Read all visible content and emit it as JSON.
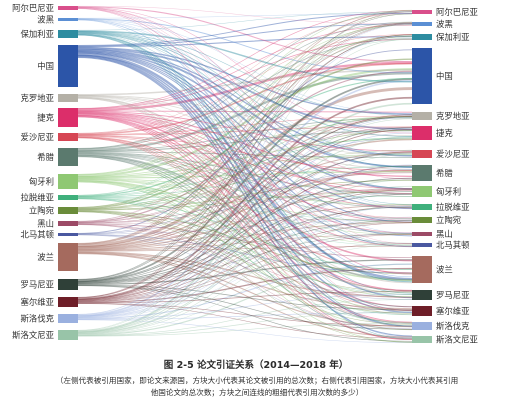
{
  "caption": {
    "title": "图 2-5  论文引证关系（2014—2018 年）",
    "note_line1": "（左侧代表被引用国家，即论文来源国，方块大小代表其论文被引用的总次数；右侧代表引用国家，方块大小代表其引用",
    "note_line2": "他国论文的总次数；方块之间连线的粗细代表引用次数的多少）"
  },
  "diagram": {
    "type": "sankey",
    "countries": [
      {
        "name": "阿尔巴尼亚",
        "color": "#d94f8b"
      },
      {
        "name": "波黑",
        "color": "#5b8fd4"
      },
      {
        "name": "保加利亚",
        "color": "#2d8ca0"
      },
      {
        "name": "中国",
        "color": "#2c55a8"
      },
      {
        "name": "克罗地亚",
        "color": "#b4b0a6"
      },
      {
        "name": "捷克",
        "color": "#dc2e6a"
      },
      {
        "name": "爱沙尼亚",
        "color": "#d64654"
      },
      {
        "name": "希腊",
        "color": "#5b7a6e"
      },
      {
        "name": "匈牙利",
        "color": "#8fc873"
      },
      {
        "name": "拉脱维亚",
        "color": "#3fb07c"
      },
      {
        "name": "立陶宛",
        "color": "#6a8c3a"
      },
      {
        "name": "黑山",
        "color": "#9c4a66"
      },
      {
        "name": "北马其顿",
        "color": "#4a58a0"
      },
      {
        "name": "波兰",
        "color": "#a56a5e"
      },
      {
        "name": "罗马尼亚",
        "color": "#2f4038"
      },
      {
        "name": "塞尔维亚",
        "color": "#6e1e28"
      },
      {
        "name": "斯洛伐克",
        "color": "#9ab0df"
      },
      {
        "name": "斯洛文尼亚",
        "color": "#98c4a8"
      }
    ]
  }
}
